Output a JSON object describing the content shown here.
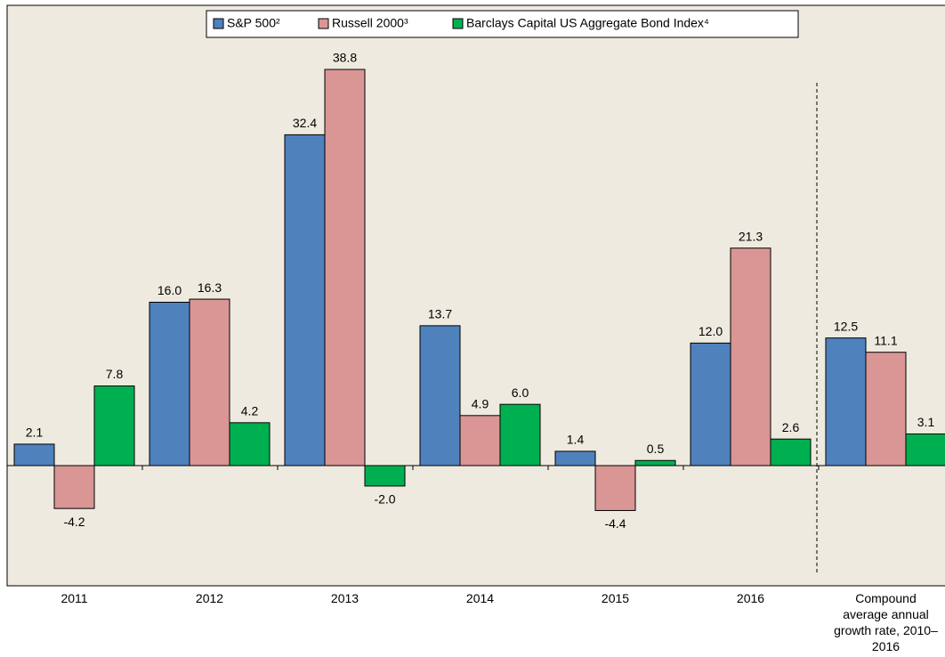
{
  "chart_data": {
    "type": "bar",
    "categories": [
      "2011",
      "2012",
      "2013",
      "2014",
      "2015",
      "2016",
      "Compound average annual growth rate, 2010–2016"
    ],
    "series": [
      {
        "name": "S&P 500²",
        "color": "#4f81bd",
        "values": [
          2.1,
          16,
          32.4,
          13.7,
          1.4,
          12,
          12.5
        ],
        "value_labels": [
          "2.1",
          "16.0",
          "32.4",
          "13.7",
          "1.4",
          "12.0",
          "12.5"
        ]
      },
      {
        "name": "Russell 2000³",
        "color": "#d99694",
        "values": [
          -4.2,
          16.3,
          38.8,
          4.9,
          -4.4,
          21.3,
          11.1
        ],
        "value_labels": [
          "-4.2",
          "16.3",
          "38.8",
          "4.9",
          "-4.4",
          "21.3",
          "11.1"
        ]
      },
      {
        "name": "Barclays Capital US Aggregate Bond Index⁴",
        "color": "#00b050",
        "values": [
          7.8,
          4.2,
          -2,
          6,
          0.5,
          2.6,
          3.1
        ],
        "value_labels": [
          "7.8",
          "4.2",
          "-2.0",
          "6.0",
          "0.5",
          "2.6",
          "3.1"
        ]
      }
    ]
  }
}
